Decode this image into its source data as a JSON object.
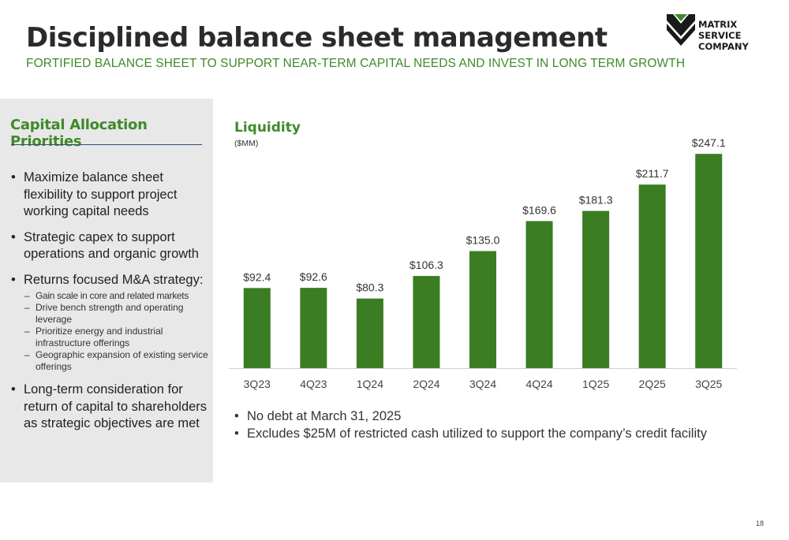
{
  "header": {
    "title": "Disciplined balance sheet management",
    "subtitle": "FORTIFIED BALANCE SHEET TO SUPPORT NEAR-TERM CAPITAL NEEDS AND INVEST IN LONG TERM GROWTH"
  },
  "logo": {
    "line1": "MATRIX SERVICE",
    "line2": "COMPANY"
  },
  "panel": {
    "title": "Capital Allocation Priorities",
    "bullets": [
      {
        "text": "Maximize balance sheet flexibility to support project working capital needs"
      },
      {
        "text": "Strategic capex to support operations and organic growth"
      },
      {
        "text": "Returns focused M&A strategy:",
        "subs": [
          "Gain scale in core and related markets",
          "Drive bench strength and operating leverage",
          "Prioritize energy and industrial infrastructure offerings",
          "Geographic expansion of  existing service offerings"
        ]
      },
      {
        "text": "Long-term consideration for return of capital to shareholders as strategic objectives are met"
      }
    ]
  },
  "chart_data": {
    "type": "bar",
    "title": "Liquidity",
    "ylabel": "($MM)",
    "categories": [
      "3Q23",
      "4Q23",
      "1Q24",
      "2Q24",
      "3Q24",
      "4Q24",
      "1Q25",
      "2Q25",
      "3Q25"
    ],
    "values": [
      92.4,
      92.6,
      80.3,
      106.3,
      135.0,
      169.6,
      181.3,
      211.7,
      247.1
    ],
    "value_labels": [
      "$92.4",
      "$92.6",
      "$80.3",
      "$106.3",
      "$135.0",
      "$169.6",
      "$181.3",
      "$211.7",
      "$247.1"
    ],
    "ylim": [
      0,
      250
    ],
    "bar_color": "#3a7d22",
    "grid": false,
    "legend": "none"
  },
  "notes": [
    "No debt at March 31, 2025",
    "Excludes $25M of restricted cash utilized to support the company’s credit facility"
  ],
  "page_number": "18",
  "colors": {
    "accent_green": "#3f8a2a",
    "bar_green": "#3a7d22",
    "panel_bg": "#e8e8e8"
  }
}
